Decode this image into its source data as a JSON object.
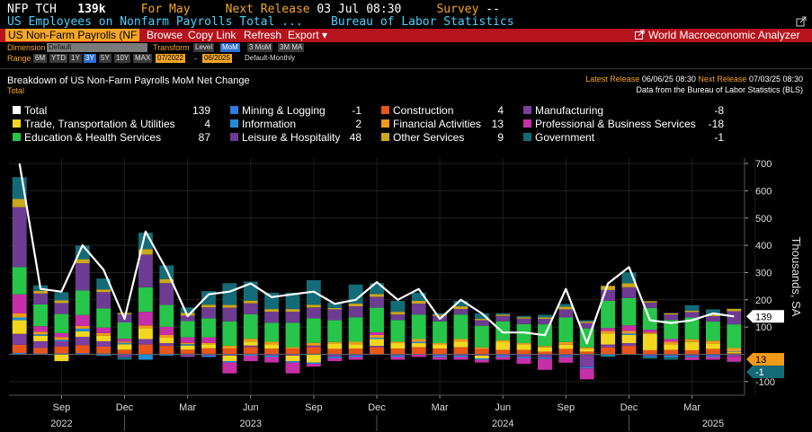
{
  "header": {
    "ticker": "NFP TCH",
    "value": "139k",
    "for_label": "For",
    "for_value": "May",
    "next_release_label": "Next Release",
    "next_release_value": "03 Jul 08:30",
    "survey_label": "Survey",
    "survey_value": "--",
    "title": "US Employees on Nonfarm Payrolls Total ...",
    "source": "Bureau of Labor Statistics"
  },
  "menubar": {
    "selector": "US Non-Farm Payrolls (NF",
    "browse": "Browse",
    "copy_link": "Copy Link",
    "refresh": "Refresh",
    "export": "Export",
    "export_caret": "▾",
    "app_name": "World Macroeconomic Analyzer"
  },
  "controls": {
    "dimension_label": "Dimension",
    "dimension_value": "Default",
    "transform_label": "Transform",
    "transforms": [
      "Level",
      "MoM",
      "3 MoM",
      "3M MA"
    ],
    "range_label": "Range",
    "ranges": [
      "6M",
      "YTD",
      "1Y",
      "3Y",
      "5Y",
      "10Y",
      "MAX"
    ],
    "range_start": "07/2022",
    "range_sep": "-",
    "range_end": "06/2025",
    "frequency": "Default-Monthly"
  },
  "panel": {
    "title": "Breakdown of US Non-Farm Payrolls MoM Net Change",
    "subtitle": "Total",
    "latest_label": "Latest Release",
    "latest_value": "06/06/25 08:30",
    "next_label": "Next Release",
    "next_value": "07/03/25 08:30",
    "source_note": "Data from the Bureau of Labor Statistics (BLS)"
  },
  "legend": [
    {
      "name": "Total",
      "value": "139",
      "color": "#ffffff"
    },
    {
      "name": "Mining & Logging",
      "value": "-1",
      "color": "#2d7be0"
    },
    {
      "name": "Construction",
      "value": "4",
      "color": "#e8561a"
    },
    {
      "name": "Manufacturing",
      "value": "-8",
      "color": "#7b3fa0"
    },
    {
      "name": "Trade, Transportation & Utilities",
      "value": "4",
      "color": "#f2d71e"
    },
    {
      "name": "Information",
      "value": "2",
      "color": "#1f8cd6"
    },
    {
      "name": "Financial Activities",
      "value": "13",
      "color": "#f09a1a"
    },
    {
      "name": "Professional & Business Services",
      "value": "-18",
      "color": "#c72fa8"
    },
    {
      "name": "Education & Health Services",
      "value": "87",
      "color": "#27c54a"
    },
    {
      "name": "Leisure & Hospitality",
      "value": "48",
      "color": "#6d3c92"
    },
    {
      "name": "Other Services",
      "value": "9",
      "color": "#c9a81b"
    },
    {
      "name": "Government",
      "value": "-1",
      "color": "#146b78"
    }
  ],
  "value_tags": [
    {
      "text": "139",
      "color": "#ffffff",
      "value": 139
    },
    {
      "text": "13",
      "color": "#f09a1a",
      "value": 13
    },
    {
      "text": "-1",
      "color": "#146b78",
      "value": -1
    }
  ],
  "chart_data": {
    "type": "bar",
    "stacked": true,
    "ylabel": "Thousands, SA",
    "ylim": [
      -150,
      720
    ],
    "yticks": [
      700,
      600,
      500,
      400,
      300,
      200,
      100,
      -100
    ],
    "ytick_labels": [
      "700",
      "600",
      "500",
      "400",
      "300",
      "200",
      "100",
      "-100"
    ],
    "x_month_labels": [
      {
        "index": 2,
        "label": "Sep"
      },
      {
        "index": 5,
        "label": "Dec"
      },
      {
        "index": 8,
        "label": "Mar"
      },
      {
        "index": 11,
        "label": "Jun"
      },
      {
        "index": 14,
        "label": "Sep"
      },
      {
        "index": 17,
        "label": "Dec"
      },
      {
        "index": 20,
        "label": "Mar"
      },
      {
        "index": 23,
        "label": "Jun"
      },
      {
        "index": 26,
        "label": "Sep"
      },
      {
        "index": 29,
        "label": "Dec"
      },
      {
        "index": 32,
        "label": "Mar"
      }
    ],
    "x_year_labels": [
      {
        "index": 2,
        "label": "2022"
      },
      {
        "index": 11,
        "label": "2023"
      },
      {
        "index": 23,
        "label": "2024"
      },
      {
        "index": 33,
        "label": "2025"
      }
    ],
    "categories": [
      "Jul 2022",
      "Aug 2022",
      "Sep 2022",
      "Oct 2022",
      "Nov 2022",
      "Dec 2022",
      "Jan 2023",
      "Feb 2023",
      "Mar 2023",
      "Apr 2023",
      "May 2023",
      "Jun 2023",
      "Jul 2023",
      "Aug 2023",
      "Sep 2023",
      "Oct 2023",
      "Nov 2023",
      "Dec 2023",
      "Jan 2024",
      "Feb 2024",
      "Mar 2024",
      "Apr 2024",
      "May 2024",
      "Jun 2024",
      "Jul 2024",
      "Aug 2024",
      "Sep 2024",
      "Oct 2024",
      "Nov 2024",
      "Dec 2024",
      "Jan 2025",
      "Feb 2025",
      "Mar 2025",
      "Apr 2025",
      "May 2025"
    ],
    "total": [
      700,
      240,
      230,
      400,
      310,
      130,
      450,
      310,
      140,
      220,
      230,
      260,
      210,
      220,
      230,
      185,
      200,
      265,
      200,
      240,
      130,
      200,
      150,
      80,
      80,
      70,
      240,
      40,
      260,
      320,
      125,
      115,
      125,
      150,
      139
    ],
    "series": [
      {
        "name": "Mining & Logging",
        "color": "#2d7be0",
        "values": [
          5,
          3,
          3,
          4,
          3,
          2,
          1,
          1,
          2,
          2,
          1,
          2,
          1,
          1,
          2,
          0,
          1,
          1,
          1,
          1,
          1,
          1,
          0,
          1,
          1,
          -2,
          -1,
          -2,
          1,
          1,
          -1,
          1,
          -1,
          0,
          -1
        ]
      },
      {
        "name": "Construction",
        "color": "#e8561a",
        "values": [
          30,
          20,
          25,
          30,
          25,
          15,
          35,
          30,
          15,
          20,
          20,
          25,
          20,
          20,
          25,
          20,
          20,
          25,
          20,
          25,
          20,
          25,
          20,
          15,
          15,
          10,
          20,
          10,
          25,
          30,
          15,
          15,
          15,
          20,
          4
        ]
      },
      {
        "name": "Manufacturing",
        "color": "#7b3fa0",
        "values": [
          40,
          25,
          20,
          30,
          20,
          -10,
          20,
          10,
          -10,
          -5,
          -5,
          5,
          -5,
          -5,
          5,
          -10,
          -5,
          5,
          -5,
          0,
          -5,
          -5,
          -5,
          -5,
          -10,
          -10,
          -5,
          -45,
          10,
          10,
          -5,
          -5,
          -5,
          -5,
          -8
        ]
      },
      {
        "name": "Trade, Transportation & Utilities",
        "color": "#f2d71e",
        "values": [
          50,
          20,
          -25,
          20,
          20,
          20,
          40,
          20,
          15,
          15,
          -20,
          15,
          15,
          -20,
          -30,
          20,
          15,
          25,
          20,
          15,
          15,
          20,
          -10,
          30,
          20,
          15,
          15,
          10,
          40,
          30,
          60,
          20,
          30,
          20,
          4
        ]
      },
      {
        "name": "Information",
        "color": "#1f8cd6",
        "values": [
          10,
          5,
          5,
          10,
          -5,
          5,
          -20,
          -5,
          5,
          -5,
          -5,
          -5,
          -5,
          -5,
          -5,
          -5,
          -5,
          5,
          -5,
          5,
          -5,
          -5,
          -5,
          -5,
          -5,
          -5,
          -5,
          -5,
          -5,
          5,
          -5,
          -5,
          -5,
          -5,
          2
        ]
      },
      {
        "name": "Financial Activities",
        "color": "#f09a1a",
        "values": [
          15,
          10,
          10,
          10,
          10,
          5,
          10,
          10,
          5,
          5,
          10,
          10,
          10,
          5,
          10,
          5,
          10,
          10,
          5,
          10,
          5,
          10,
          5,
          5,
          5,
          5,
          10,
          5,
          10,
          10,
          5,
          10,
          10,
          10,
          13
        ]
      },
      {
        "name": "Professional & Business Services",
        "color": "#c72fa8",
        "values": [
          70,
          20,
          15,
          40,
          20,
          10,
          50,
          30,
          20,
          20,
          -40,
          -20,
          -20,
          -40,
          -10,
          -10,
          -10,
          10,
          -10,
          -10,
          -10,
          -10,
          -10,
          -10,
          -20,
          -40,
          -20,
          -40,
          10,
          20,
          10,
          10,
          -10,
          -10,
          -18
        ]
      },
      {
        "name": "Education & Health Services",
        "color": "#27c54a",
        "values": [
          100,
          80,
          70,
          90,
          70,
          60,
          90,
          80,
          60,
          70,
          90,
          90,
          70,
          90,
          90,
          80,
          90,
          90,
          80,
          90,
          80,
          90,
          80,
          70,
          70,
          80,
          90,
          70,
          100,
          100,
          80,
          70,
          80,
          70,
          87
        ]
      },
      {
        "name": "Leisure & Hospitality",
        "color": "#6d3c92",
        "values": [
          220,
          40,
          40,
          100,
          60,
          30,
          120,
          80,
          20,
          40,
          50,
          40,
          40,
          40,
          40,
          40,
          40,
          40,
          20,
          40,
          20,
          20,
          20,
          20,
          20,
          20,
          30,
          20,
          40,
          40,
          20,
          20,
          20,
          20,
          48
        ]
      },
      {
        "name": "Other Services",
        "color": "#c9a81b",
        "values": [
          30,
          10,
          10,
          15,
          10,
          5,
          20,
          15,
          10,
          10,
          10,
          10,
          10,
          10,
          10,
          5,
          10,
          10,
          10,
          10,
          5,
          10,
          5,
          5,
          5,
          5,
          10,
          5,
          15,
          15,
          5,
          5,
          5,
          5,
          9
        ]
      },
      {
        "name": "Government",
        "color": "#146b78",
        "values": [
          80,
          20,
          30,
          50,
          40,
          -10,
          60,
          50,
          20,
          50,
          80,
          70,
          60,
          60,
          90,
          20,
          70,
          40,
          40,
          30,
          5,
          20,
          20,
          5,
          5,
          10,
          10,
          5,
          -5,
          40,
          -5,
          -10,
          20,
          20,
          -1
        ]
      }
    ]
  }
}
